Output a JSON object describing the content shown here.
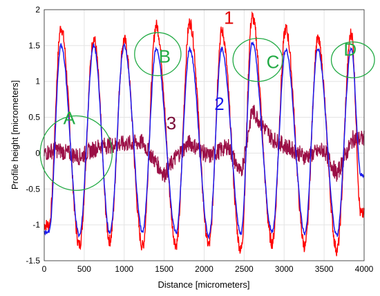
{
  "chart_data": {
    "type": "line",
    "xlabel": "Distance [micrometers]",
    "ylabel": "Profile height [micrometers]",
    "xlim": [
      0,
      4000
    ],
    "ylim": [
      -1.5,
      2
    ],
    "x_ticks": [
      0,
      500,
      1000,
      1500,
      2000,
      2500,
      3000,
      3500,
      4000
    ],
    "y_ticks": [
      -1.5,
      -1,
      -0.5,
      0,
      0.5,
      1,
      1.5,
      2
    ],
    "grid": true,
    "series": [
      {
        "name": "1",
        "color": "#ff0000",
        "peaks": [
          [
            210,
            1.75
          ],
          [
            620,
            1.6
          ],
          [
            1000,
            1.58
          ],
          [
            1400,
            1.78
          ],
          [
            1820,
            1.82
          ],
          [
            2220,
            1.7
          ],
          [
            2600,
            1.9
          ],
          [
            3020,
            1.73
          ],
          [
            3420,
            1.58
          ],
          [
            3840,
            1.68
          ]
        ],
        "troughs": [
          [
            60,
            -1.0
          ],
          [
            440,
            -1.28
          ],
          [
            820,
            -1.22
          ],
          [
            1230,
            -1.3
          ],
          [
            1650,
            -1.27
          ],
          [
            2060,
            -1.28
          ],
          [
            2460,
            -1.35
          ],
          [
            2850,
            -1.25
          ],
          [
            3260,
            -1.3
          ],
          [
            3660,
            -1.35
          ],
          [
            3960,
            -0.85
          ]
        ]
      },
      {
        "name": "2",
        "color": "#1a1aee",
        "peaks": [
          [
            210,
            1.5
          ],
          [
            620,
            1.5
          ],
          [
            1000,
            1.5
          ],
          [
            1400,
            1.45
          ],
          [
            1820,
            1.45
          ],
          [
            2220,
            1.45
          ],
          [
            2600,
            1.55
          ],
          [
            3020,
            1.45
          ],
          [
            3420,
            1.45
          ],
          [
            3840,
            1.45
          ]
        ],
        "troughs": [
          [
            60,
            -1.1
          ],
          [
            440,
            -1.15
          ],
          [
            820,
            -1.12
          ],
          [
            1230,
            -1.1
          ],
          [
            1650,
            -1.1
          ],
          [
            2060,
            -1.15
          ],
          [
            2460,
            -1.12
          ],
          [
            2850,
            -1.1
          ],
          [
            3260,
            -1.12
          ],
          [
            3660,
            -1.15
          ],
          [
            3960,
            -0.3
          ]
        ]
      },
      {
        "name": "3",
        "color": "#9b0f46",
        "segments": [
          [
            0,
            0.0
          ],
          [
            150,
            0.05
          ],
          [
            440,
            -0.05
          ],
          [
            700,
            0.1
          ],
          [
            1230,
            0.15
          ],
          [
            1500,
            -0.3
          ],
          [
            1650,
            -0.05
          ],
          [
            1820,
            0.15
          ],
          [
            2060,
            -0.05
          ],
          [
            2300,
            0.1
          ],
          [
            2460,
            -0.3
          ],
          [
            2600,
            0.6
          ],
          [
            2850,
            0.2
          ],
          [
            3260,
            -0.05
          ],
          [
            3500,
            0.05
          ],
          [
            3660,
            -0.3
          ],
          [
            3860,
            0.2
          ],
          [
            4000,
            0.2
          ]
        ],
        "noise": 0.12
      }
    ],
    "annotations": [
      {
        "label": "A",
        "x": 400,
        "y": 0.0,
        "rx": 450,
        "ry": 0.52,
        "color": "#22aa44"
      },
      {
        "label": "B",
        "x": 1420,
        "y": 1.38,
        "rx": 290,
        "ry": 0.3,
        "color": "#22aa44"
      },
      {
        "label": "C",
        "x": 2670,
        "y": 1.3,
        "rx": 310,
        "ry": 0.3,
        "color": "#22aa44"
      },
      {
        "label": "D",
        "x": 3860,
        "y": 1.3,
        "rx": 270,
        "ry": 0.25,
        "color": "#22aa44"
      }
    ],
    "series_labels": [
      {
        "text": "1",
        "x": 2310,
        "y": 1.8,
        "color": "#e00000"
      },
      {
        "text": "2",
        "x": 2190,
        "y": 0.6,
        "color": "#1a1aee"
      },
      {
        "text": "3",
        "x": 1590,
        "y": 0.33,
        "color": "#7a0f3a"
      }
    ]
  }
}
